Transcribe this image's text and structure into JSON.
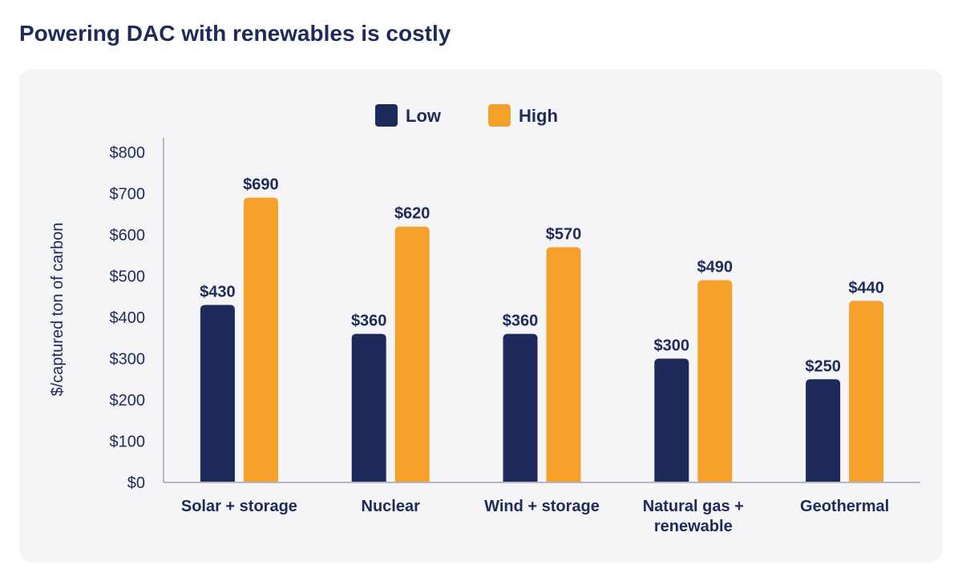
{
  "chart_data": {
    "type": "bar",
    "title": "Powering DAC with renewables is costly",
    "ylabel": "$/captured ton of carbon",
    "xlabel": "",
    "ylim": [
      0,
      800
    ],
    "ticks": [
      "$0",
      "$100",
      "$200",
      "$300",
      "$400",
      "$500",
      "$600",
      "$700",
      "$800"
    ],
    "tick_values": [
      0,
      100,
      200,
      300,
      400,
      500,
      600,
      700,
      800
    ],
    "categories": [
      [
        "Solar + storage"
      ],
      [
        "Nuclear"
      ],
      [
        "Wind + storage"
      ],
      [
        "Natural gas +",
        "renewable"
      ],
      [
        "Geothermal"
      ]
    ],
    "series": [
      {
        "name": "Low",
        "color": "#1e2a5a",
        "values": [
          430,
          360,
          360,
          300,
          250
        ],
        "labels": [
          "$430",
          "$360",
          "$360",
          "$300",
          "$250"
        ]
      },
      {
        "name": "High",
        "color": "#f5a02a",
        "values": [
          690,
          620,
          570,
          490,
          440
        ],
        "labels": [
          "$690",
          "$620",
          "$570",
          "$490",
          "$440"
        ]
      }
    ],
    "legend_position": "top-center",
    "grid": false
  },
  "colors": {
    "text": "#1e2a5a",
    "axis": "#b4b6c8",
    "card": "#f5f5f8"
  }
}
